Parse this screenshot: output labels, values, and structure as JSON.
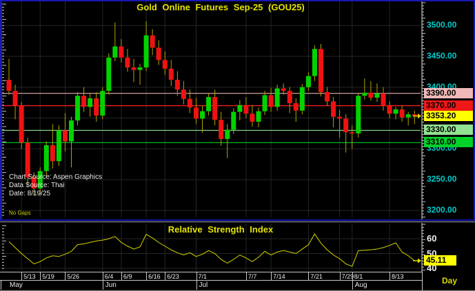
{
  "window": {
    "timeframe_label": "Day"
  },
  "colors": {
    "background": "#000000",
    "frame_blue": "#1818b4",
    "grid": "#262626",
    "title_yellow": "#e4e400",
    "axis_cyan": "#00cccc",
    "up": "#00d400",
    "down": "#f01212",
    "wick": "#b4a400",
    "rsi_line": "#d6d600",
    "ruler": "#cccccc"
  },
  "main_chart": {
    "title": "Gold Online Futures Sep-25 (GOU25)",
    "annotations": {
      "chart_source": "Chart Source: Aspen Graphics",
      "data_source": "Data Source: Thai",
      "date": "Date: 8/19/25",
      "mode": "No Gaps"
    },
    "price_axis_ticks": [
      {
        "value": 3500,
        "label": "3500.00"
      },
      {
        "value": 3450,
        "label": "3450.00"
      },
      {
        "value": 3400,
        "label": "3400.00"
      },
      {
        "value": 3350,
        "label": "3350.00"
      },
      {
        "value": 3300,
        "label": "3300.00"
      },
      {
        "value": 3250,
        "label": "3250.00"
      },
      {
        "value": 3200,
        "label": "3200.00"
      }
    ],
    "levels": [
      {
        "price": 3390.0,
        "label": "3390.00",
        "line_color": "#e8b0b0",
        "chip_bg": "#f0b8b8",
        "has_line": true
      },
      {
        "price": 3370.0,
        "label": "3370.00",
        "line_color": "#ff1c1c",
        "chip_bg": "#ee1818",
        "has_line": true
      },
      {
        "price": 3353.2,
        "label": "3353.20",
        "line_color": null,
        "chip_bg": "#ffff00",
        "has_line": false
      },
      {
        "price": 3330.0,
        "label": "3330.00",
        "line_color": "#86d686",
        "chip_bg": "#92e292",
        "has_line": true
      },
      {
        "price": 3310.0,
        "label": "3310.00",
        "line_color": "#00bc1e",
        "chip_bg": "#00d22a",
        "has_line": true
      }
    ],
    "last_price": {
      "value": 3353.2,
      "label": "3353.20"
    }
  },
  "rsi_panel": {
    "title": "Relative Strength Index",
    "axis_ticks": [
      {
        "value": 60,
        "label": "60"
      },
      {
        "value": 50,
        "label": "50"
      },
      {
        "value": 40,
        "label": "40"
      }
    ],
    "last_value": {
      "value": 45.11,
      "label": "45.11"
    }
  },
  "x_axis": {
    "week_ticks": [
      {
        "label": "5/13",
        "i": 2
      },
      {
        "label": "5/19",
        "i": 5
      },
      {
        "label": "5/26",
        "i": 9
      },
      {
        "label": "6/4",
        "i": 15
      },
      {
        "label": "6/9",
        "i": 18
      },
      {
        "label": "6/16",
        "i": 22
      },
      {
        "label": "6/23",
        "i": 25
      },
      {
        "label": "7/1",
        "i": 30
      },
      {
        "label": "7/7",
        "i": 38
      },
      {
        "label": "7/14",
        "i": 42
      },
      {
        "label": "7/21",
        "i": 48
      },
      {
        "label": "7/29",
        "i": 53
      },
      {
        "label": "8/1",
        "i": 55
      },
      {
        "label": "8/13",
        "i": 61
      }
    ],
    "months": [
      {
        "label": "May",
        "i": 0,
        "label_x": 14
      },
      {
        "label": "Jun",
        "i": 15
      },
      {
        "label": "Jul",
        "i": 30
      },
      {
        "label": "Aug",
        "i": 55
      }
    ]
  },
  "chart_data": {
    "type": "candlestick",
    "title": "Gold Online Futures Sep-25 (GOU25)",
    "ohlc_format": [
      "open",
      "high",
      "low",
      "close"
    ],
    "price_axis_range": [
      3193,
      3520
    ],
    "grid": true,
    "overlay_levels": [
      3390,
      3370,
      3330,
      3310
    ],
    "last_close": 3353.2,
    "candles": [
      [
        3412,
        3446,
        3388,
        3394
      ],
      [
        3394,
        3404,
        3348,
        3370
      ],
      [
        3370,
        3376,
        3300,
        3310
      ],
      [
        3310,
        3318,
        3238,
        3254
      ],
      [
        3254,
        3262,
        3224,
        3236
      ],
      [
        3236,
        3270,
        3226,
        3264
      ],
      [
        3264,
        3312,
        3256,
        3306
      ],
      [
        3306,
        3340,
        3268,
        3280
      ],
      [
        3280,
        3338,
        3272,
        3330
      ],
      [
        3330,
        3358,
        3296,
        3312
      ],
      [
        3312,
        3352,
        3270,
        3346
      ],
      [
        3346,
        3392,
        3338,
        3386
      ],
      [
        3386,
        3400,
        3360,
        3368
      ],
      [
        3368,
        3390,
        3352,
        3382
      ],
      [
        3382,
        3392,
        3344,
        3354
      ],
      [
        3354,
        3400,
        3348,
        3394
      ],
      [
        3394,
        3455,
        3388,
        3448
      ],
      [
        3448,
        3505,
        3442,
        3466
      ],
      [
        3466,
        3478,
        3440,
        3448
      ],
      [
        3448,
        3462,
        3425,
        3432
      ],
      [
        3432,
        3446,
        3408,
        3428
      ],
      [
        3428,
        3438,
        3404,
        3432
      ],
      [
        3432,
        3507,
        3426,
        3484
      ],
      [
        3484,
        3494,
        3452,
        3464
      ],
      [
        3464,
        3476,
        3436,
        3444
      ],
      [
        3444,
        3458,
        3420,
        3430
      ],
      [
        3430,
        3444,
        3402,
        3412
      ],
      [
        3412,
        3426,
        3386,
        3396
      ],
      [
        3396,
        3410,
        3372,
        3381
      ],
      [
        3381,
        3396,
        3358,
        3367
      ],
      [
        3367,
        3383,
        3340,
        3349
      ],
      [
        3349,
        3370,
        3326,
        3361
      ],
      [
        3361,
        3390,
        3354,
        3384
      ],
      [
        3384,
        3396,
        3338,
        3347
      ],
      [
        3347,
        3360,
        3305,
        3316
      ],
      [
        3316,
        3340,
        3285,
        3331
      ],
      [
        3331,
        3366,
        3324,
        3360
      ],
      [
        3360,
        3379,
        3346,
        3371
      ],
      [
        3371,
        3384,
        3350,
        3357
      ],
      [
        3357,
        3371,
        3336,
        3344
      ],
      [
        3344,
        3367,
        3335,
        3361
      ],
      [
        3361,
        3394,
        3355,
        3387
      ],
      [
        3387,
        3399,
        3360,
        3368
      ],
      [
        3368,
        3404,
        3362,
        3398
      ],
      [
        3398,
        3406,
        3388,
        3394
      ],
      [
        3394,
        3400,
        3358,
        3374
      ],
      [
        3374,
        3382,
        3344,
        3362
      ],
      [
        3362,
        3405,
        3356,
        3400
      ],
      [
        3400,
        3424,
        3394,
        3418
      ],
      [
        3418,
        3468,
        3410,
        3462
      ],
      [
        3462,
        3470,
        3385,
        3392
      ],
      [
        3392,
        3400,
        3370,
        3377
      ],
      [
        3377,
        3384,
        3335,
        3352
      ],
      [
        3352,
        3363,
        3318,
        3349
      ],
      [
        3349,
        3356,
        3294,
        3327
      ],
      [
        3327,
        3338,
        3300,
        3325
      ],
      [
        3325,
        3390,
        3318,
        3386
      ],
      [
        3386,
        3414,
        3380,
        3391
      ],
      [
        3391,
        3410,
        3378,
        3383
      ],
      [
        3383,
        3406,
        3376,
        3390
      ],
      [
        3390,
        3400,
        3362,
        3370
      ],
      [
        3370,
        3377,
        3350,
        3357
      ],
      [
        3357,
        3368,
        3348,
        3364
      ],
      [
        3364,
        3370,
        3344,
        3351
      ],
      [
        3351,
        3360,
        3338,
        3356
      ],
      [
        3356,
        3362,
        3340,
        3353.2
      ]
    ],
    "indicator": {
      "type": "line",
      "name": "Relative Strength Index",
      "range": [
        40,
        70
      ],
      "last_value": 45.11,
      "values": [
        58,
        54,
        50,
        46.5,
        43,
        44.5,
        47,
        48.5,
        48,
        49.5,
        51.5,
        56,
        56.5,
        57.5,
        58.5,
        59,
        60,
        61.5,
        57.5,
        55,
        53,
        54.5,
        63,
        60.5,
        57.5,
        55,
        52.5,
        50.5,
        49,
        50.5,
        48,
        49.5,
        52,
        50,
        46,
        43.5,
        46,
        49,
        47,
        44.5,
        47.5,
        51.5,
        49,
        51,
        52,
        51,
        50,
        53,
        56,
        63.2,
        57,
        52.5,
        49,
        46.5,
        43,
        41.3,
        52,
        52.2,
        52.5,
        53,
        54,
        55.5,
        57.2,
        51,
        48.5,
        45.11
      ]
    }
  }
}
